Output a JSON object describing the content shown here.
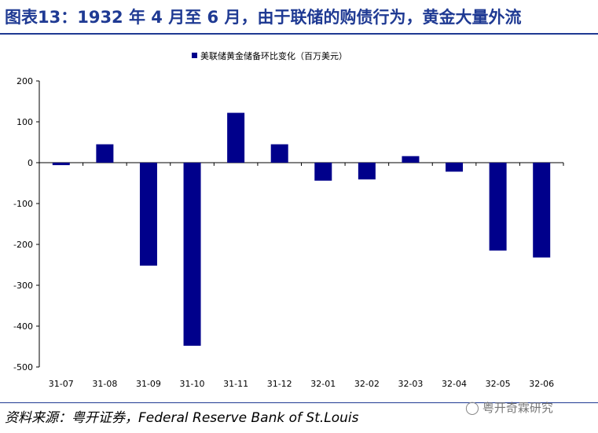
{
  "title": "图表13：1932 年 4 月至 6 月，由于联储的购债行为，黄金大量外流",
  "source": "资料来源：粤开证券，Federal Reserve Bank of St.Louis",
  "watermark": {
    "icon": "wechat-icon",
    "text": "粤开奇霖研究"
  },
  "colors": {
    "bar": "#00008B",
    "title": "#1f3a93"
  },
  "chart_data": {
    "type": "bar",
    "categories": [
      "31-07",
      "31-08",
      "31-09",
      "31-10",
      "31-11",
      "31-12",
      "32-01",
      "32-02",
      "32-03",
      "32-04",
      "32-05",
      "32-06"
    ],
    "series": [
      {
        "name": "美联储黄金储备环比变化（百万美元）",
        "values": [
          -6,
          45,
          -252,
          -448,
          122,
          45,
          -44,
          -41,
          16,
          -22,
          -215,
          -232
        ]
      }
    ],
    "yticks": [
      200,
      100,
      0,
      -100,
      -200,
      -300,
      -400,
      -500
    ],
    "ylim": [
      -500,
      200
    ],
    "grid": false,
    "legend_position": "top-center"
  }
}
